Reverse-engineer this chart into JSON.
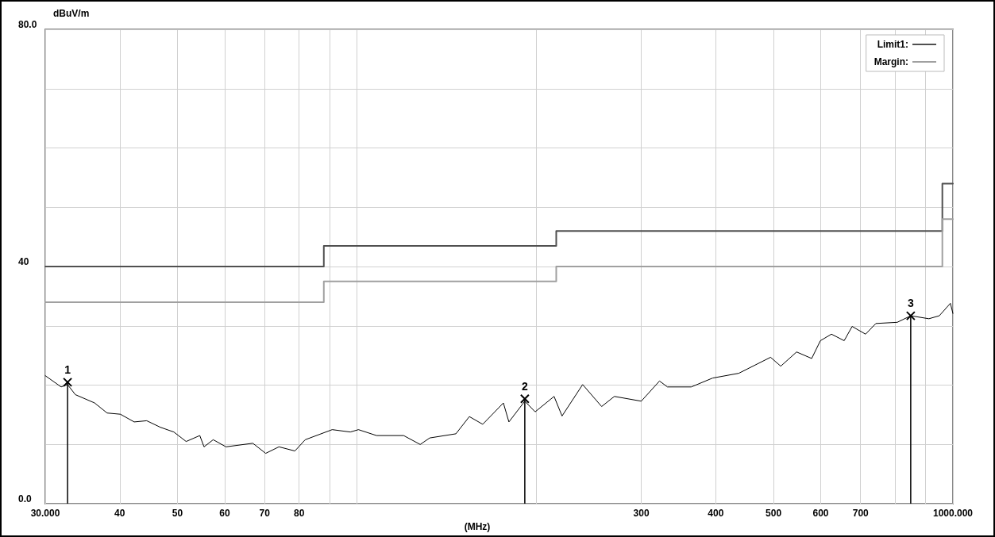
{
  "chart_data": {
    "type": "line",
    "xlabel": "(MHz)",
    "ylabel": "dBuV/m",
    "log": "x",
    "grid": true,
    "legend": "top right",
    "marker": "none",
    "line_style": "solid",
    "xlim": [
      30,
      1000
    ],
    "xticks": [
      {
        "value": 30,
        "label": "30.000"
      },
      40,
      50,
      60,
      70,
      80,
      {
        "value": 90,
        "label": null
      },
      {
        "value": 100,
        "label": null
      },
      {
        "value": 200,
        "label": null
      },
      300,
      400,
      500,
      600,
      700,
      {
        "value": 800,
        "label": null
      },
      {
        "value": 900,
        "label": null
      },
      {
        "value": 1000,
        "label": "1000.000"
      }
    ],
    "ylim": [
      0,
      80
    ],
    "yticks": [
      {
        "value": 0,
        "label": "0.0"
      },
      {
        "value": 10,
        "label": null
      },
      {
        "value": 20,
        "label": null
      },
      {
        "value": 30,
        "label": null
      },
      40,
      {
        "value": 50,
        "label": null
      },
      {
        "value": 60,
        "label": null
      },
      {
        "value": 70,
        "label": null
      },
      {
        "value": 80,
        "label": "80.0"
      }
    ],
    "series": [
      {
        "name": "Limit1:",
        "type": "step",
        "color": "#505050",
        "x": [
          30,
          88,
          216,
          960,
          1000
        ],
        "values": [
          40,
          43.5,
          46,
          54,
          54
        ]
      },
      {
        "name": "Margin:",
        "type": "step",
        "color": "#a0a0a0",
        "x": [
          30,
          88,
          216,
          960,
          1000
        ],
        "values": [
          34,
          37.5,
          40,
          48,
          48
        ]
      },
      {
        "color": "#000000",
        "x": [
          30.0,
          31.9,
          32.7,
          33.7,
          36.3,
          38.1,
          40.1,
          42.3,
          44.4,
          46.8,
          49.3,
          51.7,
          54.5,
          55.4,
          57.4,
          60.3,
          66.9,
          70.3,
          74.0,
          78.7,
          81.9,
          90.9,
          97.5,
          100.6,
          107.9,
          119.8,
          127.7,
          132.5,
          146.6,
          154.4,
          162.6,
          176.1,
          179.9,
          191.3,
          199.1,
          214.2,
          220.9,
          239.2,
          257.4,
          270.4,
          300,
          321.9,
          331.9,
          363.9,
          395.3,
          437.2,
          494.4,
          514.2,
          546.7,
          579.5,
          599.3,
          625.5,
          657,
          677.5,
          713.6,
          742.6,
          806.6,
          849.6,
          911.4,
          948.7,
          990.3,
          1000
        ],
        "values": [
          21.6,
          19.7,
          20.1,
          18.4,
          17.0,
          15.3,
          15.1,
          13.8,
          14.0,
          12.9,
          12.1,
          10.5,
          11.5,
          9.6,
          10.8,
          9.6,
          10.2,
          8.5,
          9.6,
          8.9,
          10.8,
          12.5,
          12.1,
          12.5,
          11.5,
          11.5,
          10.0,
          11.1,
          11.8,
          14.7,
          13.4,
          17.0,
          13.8,
          17.3,
          15.5,
          18.1,
          14.8,
          20.1,
          16.4,
          18.1,
          17.3,
          20.7,
          19.7,
          19.7,
          21.2,
          22.0,
          24.7,
          23.2,
          25.6,
          24.5,
          27.5,
          28.6,
          27.5,
          29.9,
          28.6,
          30.4,
          30.6,
          31.7,
          31.2,
          31.7,
          33.8,
          32.1
        ]
      }
    ],
    "annotations": [
      {
        "text": "1",
        "x": 32.7,
        "y": 20.5
      },
      {
        "text": "2",
        "x": 191.3,
        "y": 17.7
      },
      {
        "text": "3",
        "x": 849.6,
        "y": 31.7
      }
    ]
  }
}
